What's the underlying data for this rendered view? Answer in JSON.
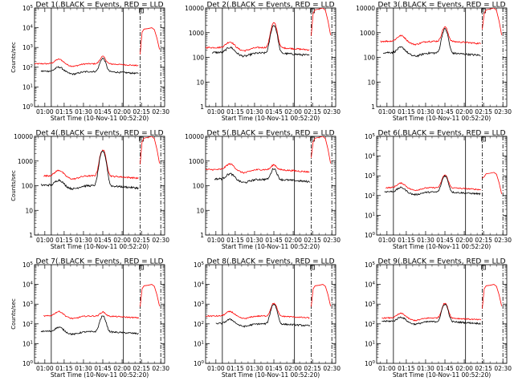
{
  "chart_data": {
    "type": "line",
    "layout": "3x3 grid of panels",
    "legend": {
      "black": "Events",
      "red": "LLD"
    },
    "series_colors": {
      "Events": "#000000",
      "LLD": "#ff0000"
    },
    "xlabel": "Start Time (10-Nov-11 00:52:20)",
    "x_tick_labels": [
      "01:00",
      "01:15",
      "01:30",
      "01:45",
      "02:00",
      "02:15",
      "02:30"
    ],
    "x_tick_minutes": [
      60,
      75,
      90,
      105,
      120,
      135,
      150
    ],
    "xlim_minutes": [
      52,
      153
    ],
    "ylabel": "Counts/sec",
    "y_scale": "log",
    "markers_minutes": {
      "solid": [
        65,
        121
      ],
      "dash_dot": [
        134,
        150
      ]
    },
    "panels": [
      {
        "title": "Det 1(.BLACK = Events, RED = LLD",
        "ylim": [
          1,
          100000
        ],
        "y_ticks": [
          1,
          10,
          100,
          1000,
          10000,
          100000
        ],
        "y_tick_labels": [
          "10^0",
          "10^1",
          "10^2",
          "10^3",
          "10^4",
          "10^5"
        ],
        "events_base": 60,
        "events_peak": 280,
        "lld_base": 150,
        "lld_peak": 350,
        "lld_max": 10000,
        "events_start": 57,
        "lld_start": 52
      },
      {
        "title": "Det 2(.BLACK = Events, RED = LLD",
        "ylim": [
          1,
          10000
        ],
        "y_ticks": [
          1,
          10,
          100,
          1000,
          10000
        ],
        "y_tick_labels": [
          "1",
          "10",
          "100",
          "1000",
          "10000"
        ],
        "events_base": 150,
        "events_peak": 2000,
        "lld_base": 250,
        "lld_peak": 2500,
        "lld_max": 10000,
        "events_start": 57,
        "lld_start": 52
      },
      {
        "title": "Det 3(.BLACK = Events, RED = LLD",
        "ylim": [
          1,
          10000
        ],
        "y_ticks": [
          1,
          10,
          100,
          1000,
          10000
        ],
        "y_tick_labels": [
          "1",
          "10",
          "100",
          "1000",
          "10000"
        ],
        "events_base": 150,
        "events_peak": 1400,
        "lld_base": 450,
        "lld_peak": 1700,
        "lld_max": 10000,
        "events_start": 57,
        "lld_start": 55
      },
      {
        "title": "Det 4(.BLACK = Events, RED = LLD",
        "ylim": [
          1,
          10000
        ],
        "y_ticks": [
          1,
          10,
          100,
          1000,
          10000
        ],
        "y_tick_labels": [
          "1",
          "10",
          "100",
          "1000",
          "10000"
        ],
        "events_base": 100,
        "events_peak": 2500,
        "lld_base": 250,
        "lld_peak": 2800,
        "lld_max": 10000,
        "events_start": 57,
        "lld_start": 59
      },
      {
        "title": "Det 5(.BLACK = Events, RED = LLD",
        "ylim": [
          1,
          10000
        ],
        "y_ticks": [
          1,
          10,
          100,
          1000,
          10000
        ],
        "y_tick_labels": [
          "1",
          "10",
          "100",
          "1000",
          "10000"
        ],
        "events_base": 180,
        "events_peak": 500,
        "lld_base": 450,
        "lld_peak": 700,
        "lld_max": 10000,
        "events_start": 59,
        "lld_start": 52
      },
      {
        "title": "Det 6(.BLACK = Events, RED = LLD",
        "ylim": [
          1,
          100000
        ],
        "y_ticks": [
          1,
          10,
          100,
          1000,
          10000,
          100000
        ],
        "y_tick_labels": [
          "10^0",
          "10^1",
          "10^2",
          "10^3",
          "10^4",
          "10^5"
        ],
        "events_base": 150,
        "events_peak": 1000,
        "lld_base": 250,
        "lld_peak": 1100,
        "lld_max": 1500,
        "events_start": 58,
        "lld_start": 59
      },
      {
        "title": "Det 7(.BLACK = Events, RED = LLD",
        "ylim": [
          1,
          100000
        ],
        "y_ticks": [
          1,
          10,
          100,
          1000,
          10000,
          100000
        ],
        "y_tick_labels": [
          "10^0",
          "10^1",
          "10^2",
          "10^3",
          "10^4",
          "10^5"
        ],
        "events_base": 40,
        "events_peak": 250,
        "lld_base": 250,
        "lld_peak": 400,
        "lld_max": 10000,
        "events_start": 57,
        "lld_start": 59
      },
      {
        "title": "Det 8(.BLACK = Events, RED = LLD",
        "ylim": [
          1,
          100000
        ],
        "y_ticks": [
          1,
          10,
          100,
          1000,
          10000,
          100000
        ],
        "y_tick_labels": [
          "10^0",
          "10^1",
          "10^2",
          "10^3",
          "10^4",
          "10^5"
        ],
        "events_base": 100,
        "events_peak": 1000,
        "lld_base": 250,
        "lld_peak": 1100,
        "lld_max": 10000,
        "events_start": 60,
        "lld_start": 52
      },
      {
        "title": "Det 9(.BLACK = Events, RED = LLD",
        "ylim": [
          1,
          100000
        ],
        "y_ticks": [
          1,
          10,
          100,
          1000,
          10000,
          100000
        ],
        "y_tick_labels": [
          "10^0",
          "10^1",
          "10^2",
          "10^3",
          "10^4",
          "10^5"
        ],
        "events_base": 130,
        "events_peak": 1000,
        "lld_base": 200,
        "lld_peak": 1100,
        "lld_max": 10000,
        "events_start": 56,
        "lld_start": 56
      }
    ]
  }
}
